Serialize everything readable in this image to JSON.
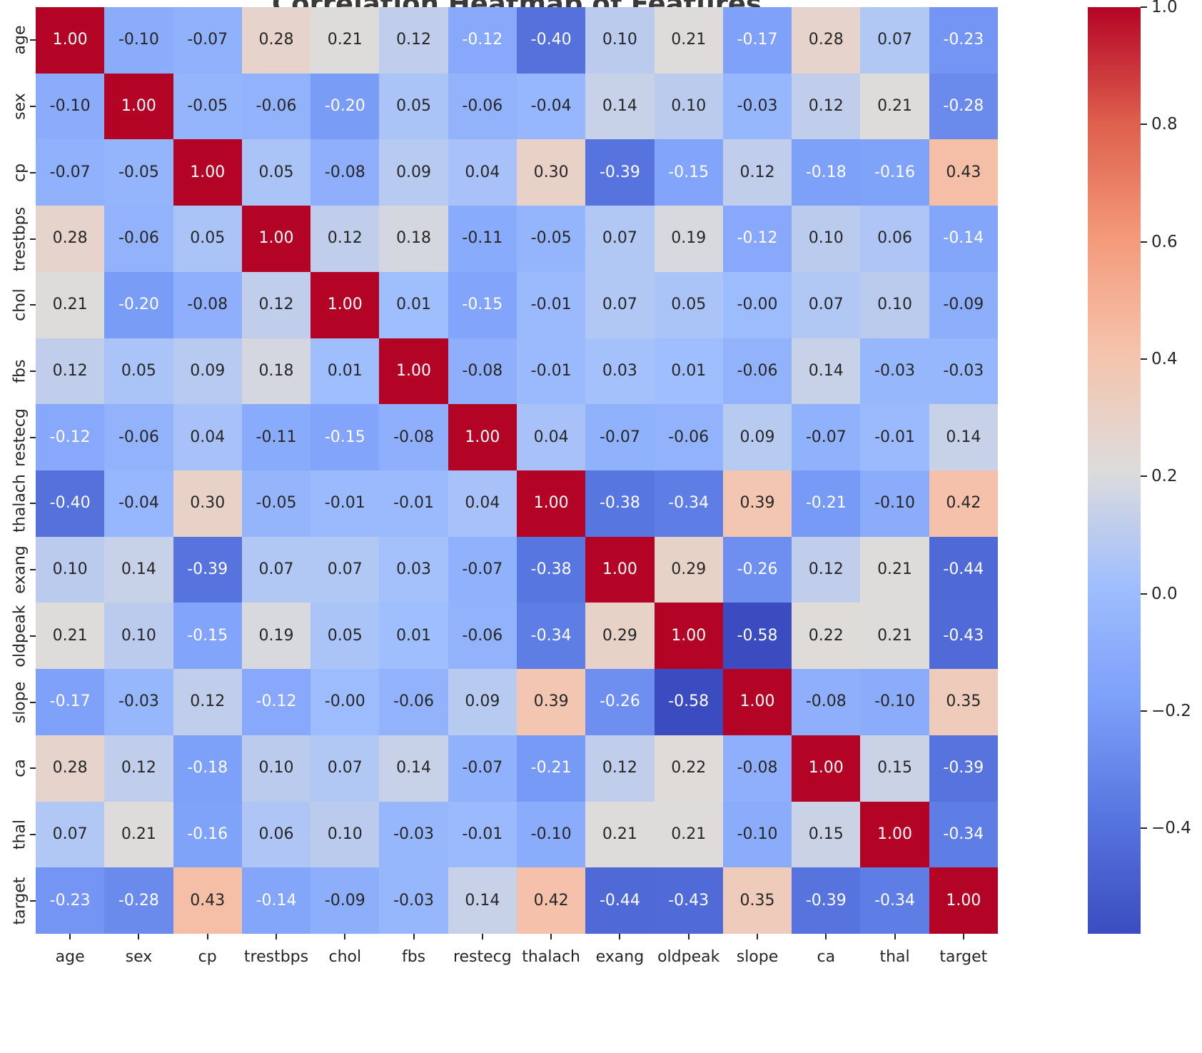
{
  "title": "Correlation Heatmap of Features",
  "chart_data": {
    "type": "heatmap",
    "labels": [
      "age",
      "sex",
      "cp",
      "trestbps",
      "chol",
      "fbs",
      "restecg",
      "thalach",
      "exang",
      "oldpeak",
      "slope",
      "ca",
      "thal",
      "target"
    ],
    "matrix": [
      [
        "1.00",
        "-0.10",
        "-0.07",
        "0.28",
        "0.21",
        "0.12",
        "-0.12",
        "-0.40",
        "0.10",
        "0.21",
        "-0.17",
        "0.28",
        "0.07",
        "-0.23"
      ],
      [
        "-0.10",
        "1.00",
        "-0.05",
        "-0.06",
        "-0.20",
        "0.05",
        "-0.06",
        "-0.04",
        "0.14",
        "0.10",
        "-0.03",
        "0.12",
        "0.21",
        "-0.28"
      ],
      [
        "-0.07",
        "-0.05",
        "1.00",
        "0.05",
        "-0.08",
        "0.09",
        "0.04",
        "0.30",
        "-0.39",
        "-0.15",
        "0.12",
        "-0.18",
        "-0.16",
        "0.43"
      ],
      [
        "0.28",
        "-0.06",
        "0.05",
        "1.00",
        "0.12",
        "0.18",
        "-0.11",
        "-0.05",
        "0.07",
        "0.19",
        "-0.12",
        "0.10",
        "0.06",
        "-0.14"
      ],
      [
        "0.21",
        "-0.20",
        "-0.08",
        "0.12",
        "1.00",
        "0.01",
        "-0.15",
        "-0.01",
        "0.07",
        "0.05",
        "-0.00",
        "0.07",
        "0.10",
        "-0.09"
      ],
      [
        "0.12",
        "0.05",
        "0.09",
        "0.18",
        "0.01",
        "1.00",
        "-0.08",
        "-0.01",
        "0.03",
        "0.01",
        "-0.06",
        "0.14",
        "-0.03",
        "-0.03"
      ],
      [
        "-0.12",
        "-0.06",
        "0.04",
        "-0.11",
        "-0.15",
        "-0.08",
        "1.00",
        "0.04",
        "-0.07",
        "-0.06",
        "0.09",
        "-0.07",
        "-0.01",
        "0.14"
      ],
      [
        "-0.40",
        "-0.04",
        "0.30",
        "-0.05",
        "-0.01",
        "-0.01",
        "0.04",
        "1.00",
        "-0.38",
        "-0.34",
        "0.39",
        "-0.21",
        "-0.10",
        "0.42"
      ],
      [
        "0.10",
        "0.14",
        "-0.39",
        "0.07",
        "0.07",
        "0.03",
        "-0.07",
        "-0.38",
        "1.00",
        "0.29",
        "-0.26",
        "0.12",
        "0.21",
        "-0.44"
      ],
      [
        "0.21",
        "0.10",
        "-0.15",
        "0.19",
        "0.05",
        "0.01",
        "-0.06",
        "-0.34",
        "0.29",
        "1.00",
        "-0.58",
        "0.22",
        "0.21",
        "-0.43"
      ],
      [
        "-0.17",
        "-0.03",
        "0.12",
        "-0.12",
        "-0.00",
        "-0.06",
        "0.09",
        "0.39",
        "-0.26",
        "-0.58",
        "1.00",
        "-0.08",
        "-0.10",
        "0.35"
      ],
      [
        "0.28",
        "0.12",
        "-0.18",
        "0.10",
        "0.07",
        "0.14",
        "-0.07",
        "-0.21",
        "0.12",
        "0.22",
        "-0.08",
        "1.00",
        "0.15",
        "-0.39"
      ],
      [
        "0.07",
        "0.21",
        "-0.16",
        "0.06",
        "0.10",
        "-0.03",
        "-0.01",
        "-0.10",
        "0.21",
        "0.21",
        "-0.10",
        "0.15",
        "1.00",
        "-0.34"
      ],
      [
        "-0.23",
        "-0.28",
        "0.43",
        "-0.14",
        "-0.09",
        "-0.03",
        "0.14",
        "0.42",
        "-0.44",
        "-0.43",
        "0.35",
        "-0.39",
        "-0.34",
        "1.00"
      ]
    ],
    "colormap": "coolwarm",
    "vmin": -0.58,
    "vmax": 1.0,
    "colorbar_ticks": [
      {
        "value": 1.0,
        "label": "1.0"
      },
      {
        "value": 0.8,
        "label": "0.8"
      },
      {
        "value": 0.6,
        "label": "0.6"
      },
      {
        "value": 0.4,
        "label": "0.4"
      },
      {
        "value": 0.2,
        "label": "0.2"
      },
      {
        "value": 0.0,
        "label": "0.0"
      },
      {
        "value": -0.2,
        "label": "−0.2"
      },
      {
        "value": -0.4,
        "label": "−0.4"
      }
    ],
    "legend_position": "right",
    "grid": false
  },
  "colors": {
    "annotation_dark": "#262626",
    "annotation_light": "#ffffff",
    "title": "#3a3a3a",
    "background": "#ffffff"
  }
}
